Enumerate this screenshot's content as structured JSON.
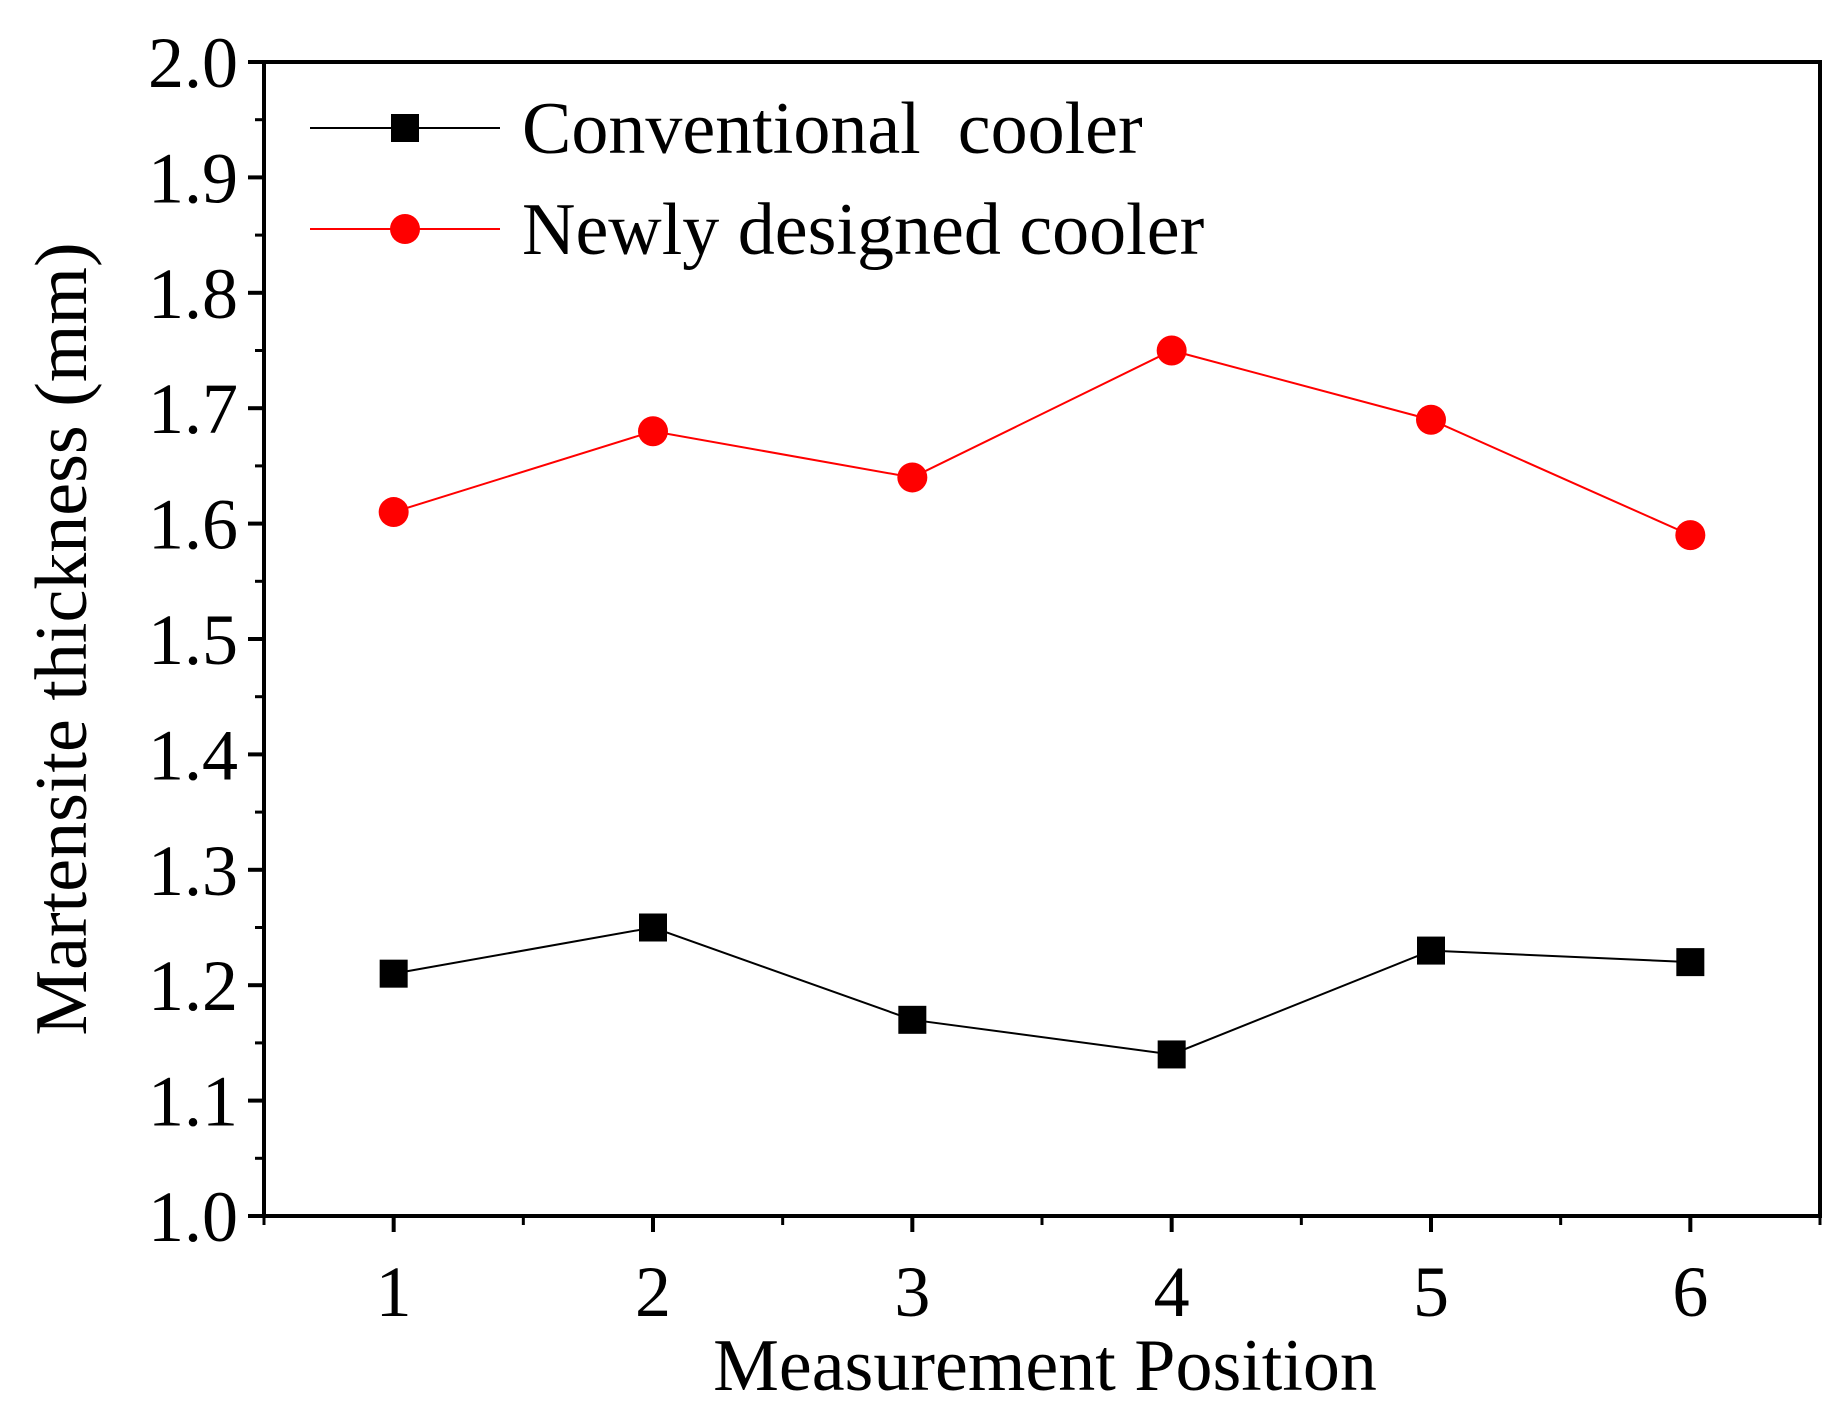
{
  "chart_data": {
    "type": "line",
    "title": "",
    "xlabel": "Measurement Position",
    "ylabel": "Martensite thickness (mm)",
    "x": [
      1,
      2,
      3,
      4,
      5,
      6
    ],
    "xlim": [
      0.5,
      6.5
    ],
    "ylim": [
      1.0,
      2.0
    ],
    "xticks": [
      "1",
      "2",
      "3",
      "4",
      "5",
      "6"
    ],
    "yticks": [
      "1.0",
      "1.1",
      "1.2",
      "1.3",
      "1.4",
      "1.5",
      "1.6",
      "1.7",
      "1.8",
      "1.9",
      "2.0"
    ],
    "grid": false,
    "legend_position": "top-left",
    "series": [
      {
        "name": "Conventional  cooler",
        "marker": "square",
        "color": "#000000",
        "values": [
          1.21,
          1.25,
          1.17,
          1.14,
          1.23,
          1.22
        ]
      },
      {
        "name": "Newly designed cooler",
        "marker": "circle",
        "color": "#ff0000",
        "values": [
          1.61,
          1.68,
          1.64,
          1.75,
          1.69,
          1.59
        ]
      }
    ]
  }
}
